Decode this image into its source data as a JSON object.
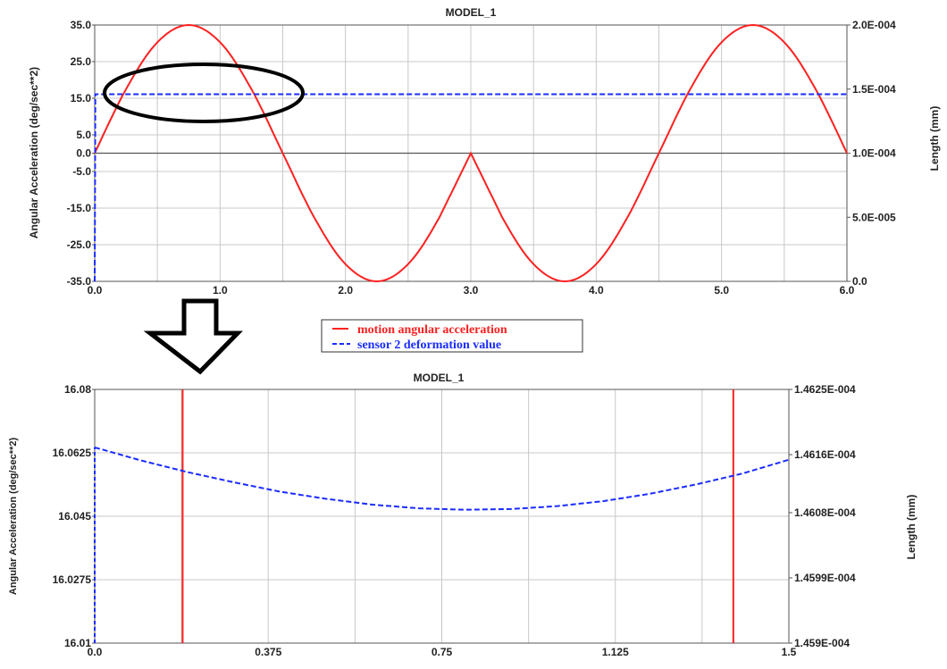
{
  "colors": {
    "series_red": "#ff2020",
    "series_blue": "#1a2cff",
    "grid": "#c8c8c8",
    "frame": "#555555",
    "annotation": "#000000"
  },
  "legend": {
    "items": [
      {
        "label": "motion angular acceleration",
        "color": "#ff2020",
        "dash": "solid"
      },
      {
        "label": "sensor 2 deformation value",
        "color": "#1a2cff",
        "dash": "dashed"
      }
    ]
  },
  "annotations": {
    "ellipse": "ellipse-highlight",
    "arrow": "down-arrow"
  },
  "chart_data": [
    {
      "type": "line",
      "title": "MODEL_1",
      "ylabel": "Angular Acceleration (deg/sec**2)",
      "y2label": "Length (mm)",
      "xlim": [
        0,
        6
      ],
      "ylim": [
        -35,
        35
      ],
      "y2lim": [
        0,
        0.0002
      ],
      "grid": true,
      "x_ticks": [
        "0.0",
        "1.0",
        "2.0",
        "3.0",
        "4.0",
        "5.0",
        "6.0"
      ],
      "x_tick_values": [
        0,
        1,
        2,
        3,
        4,
        5,
        6
      ],
      "y_ticks": [
        "35.0",
        "25.0",
        "15.0",
        "5.0",
        "0.0",
        "-5.0",
        "-15.0",
        "-25.0",
        "-35.0"
      ],
      "y_tick_values": [
        35,
        25,
        15,
        5,
        0,
        -5,
        -15,
        -25,
        -35
      ],
      "y2_ticks": [
        "2.0E-004",
        "1.5E-004",
        "1.0E-004",
        "5.0E-005",
        "0.0"
      ],
      "y2_tick_values": [
        0.0002,
        0.00015,
        0.0001,
        5e-05,
        0
      ],
      "series": [
        {
          "name": "motion angular acceleration",
          "color": "#ff2020",
          "dash": "solid",
          "axis": "left",
          "x": [
            0,
            0.25,
            0.5,
            0.75,
            1.0,
            1.25,
            1.5,
            1.75,
            2.0,
            2.25,
            2.5,
            2.75,
            3.0,
            3.25,
            3.5,
            3.75,
            4.0,
            4.25,
            4.5,
            4.75,
            5.0,
            5.25,
            5.5,
            5.75,
            6.0
          ],
          "y": [
            0,
            17.5,
            30.3,
            35,
            30.3,
            17.5,
            0,
            -17.5,
            -30.3,
            -35,
            -30.3,
            -17.5,
            0,
            -17.5,
            -30.3,
            -35,
            -30.3,
            -17.5,
            0,
            17.5,
            30.3,
            35,
            30.3,
            17.5,
            0
          ]
        },
        {
          "name": "sensor 2 deformation value",
          "color": "#1a2cff",
          "dash": "dashed",
          "axis": "right",
          "x": [
            0,
            0.005,
            6.0
          ],
          "y": [
            0,
            0.000146,
            0.000146
          ]
        }
      ]
    },
    {
      "type": "line",
      "title": "MODEL_1",
      "ylabel": "Angular Acceleration (deg/sec**2)",
      "y2label": "Length (mm)",
      "xlim": [
        0,
        1.5
      ],
      "ylim": [
        16.01,
        16.08
      ],
      "y2lim": [
        0.0001459,
        0.00014625
      ],
      "grid": true,
      "x_ticks": [
        "0.0",
        "0.375",
        "0.75",
        "1.125",
        "1.5"
      ],
      "x_tick_values": [
        0,
        0.375,
        0.75,
        1.125,
        1.5
      ],
      "y_ticks": [
        "16.08",
        "16.0625",
        "16.045",
        "16.0275",
        "16.01"
      ],
      "y_tick_values": [
        16.08,
        16.0625,
        16.045,
        16.0275,
        16.01
      ],
      "y2_ticks": [
        "1.4625E-004",
        "1.4616E-004",
        "1.4608E-004",
        "1.4599E-004",
        "1.459E-004"
      ],
      "y2_tick_values": [
        0.00014625,
        0.00014616,
        0.00014608,
        0.00014599,
        0.0001459
      ],
      "series": [
        {
          "name": "motion angular acceleration",
          "color": "#ff2020",
          "dash": "solid",
          "axis": "left",
          "vertical_crossings_x": [
            0.19,
            1.38
          ]
        },
        {
          "name": "sensor 2 deformation value",
          "color": "#1a2cff",
          "dash": "dashed",
          "axis": "right",
          "x": [
            0,
            0.1,
            0.2,
            0.3,
            0.4,
            0.5,
            0.6,
            0.7,
            0.8,
            0.9,
            1.0,
            1.1,
            1.2,
            1.3,
            1.4,
            1.5
          ],
          "y": [
            0.00014617,
            0.000146152,
            0.000146136,
            0.000146122,
            0.000146109,
            0.000146099,
            0.000146091,
            0.000146086,
            0.000146084,
            0.000146085,
            0.000146089,
            0.000146096,
            0.000146106,
            0.000146119,
            0.000146134,
            0.000146153
          ]
        }
      ]
    }
  ]
}
